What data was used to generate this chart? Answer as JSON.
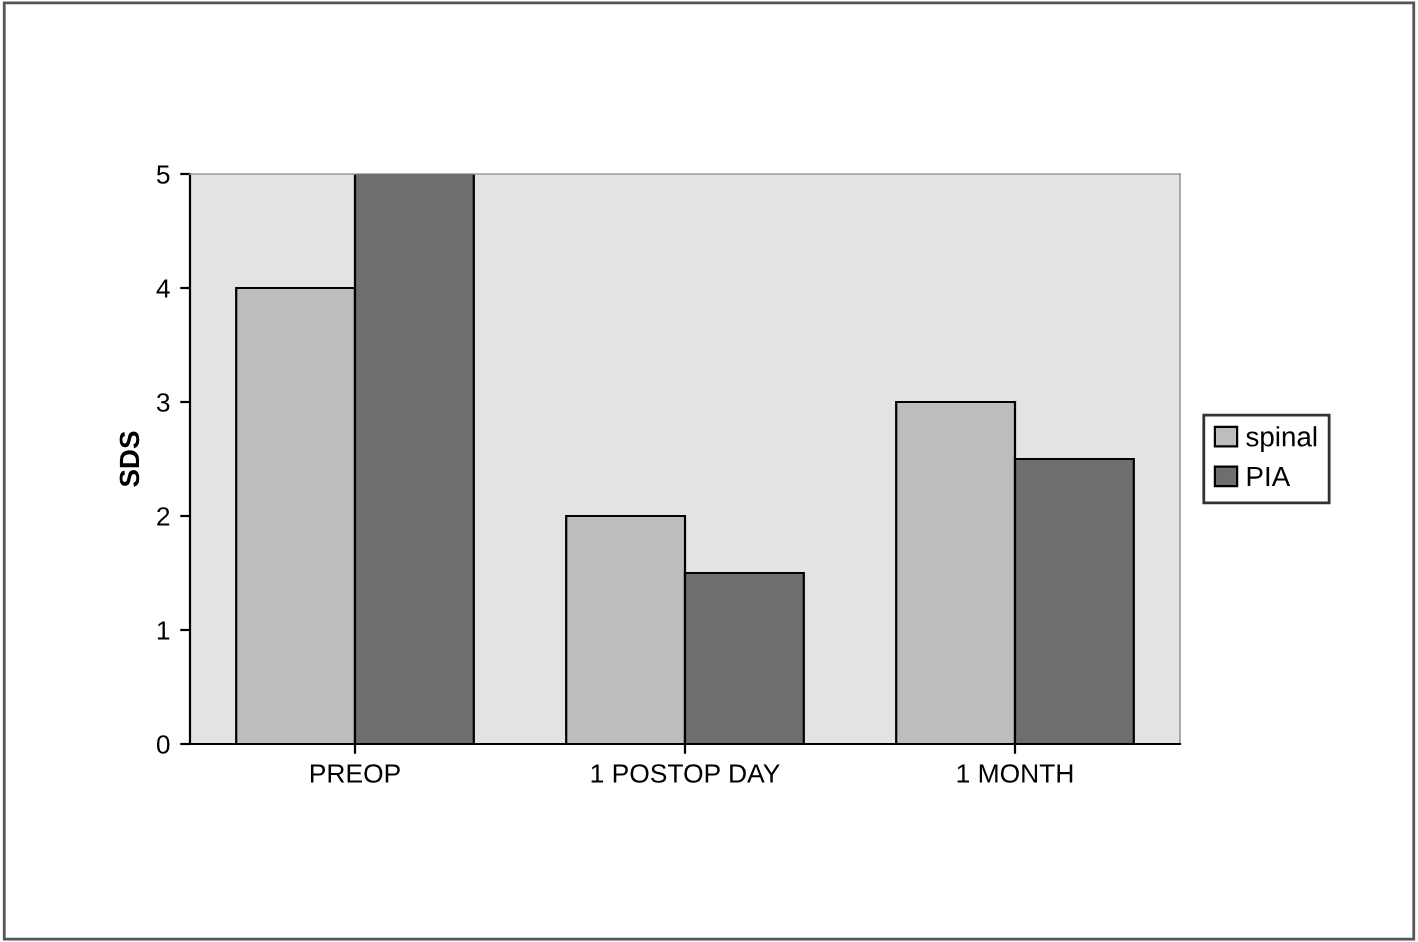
{
  "chart_data": {
    "type": "bar",
    "ylabel": "SDS",
    "categories": [
      "PREOP",
      "1 POSTOP DAY",
      "1 MONTH"
    ],
    "series": [
      {
        "name": "spinal",
        "color": "#bdbdbd",
        "values": [
          4,
          2,
          3
        ]
      },
      {
        "name": "PIA",
        "color": "#6e6e6e",
        "values": [
          5,
          1.5,
          2.5
        ]
      }
    ],
    "ylim": [
      0,
      5
    ],
    "yticks": [
      0,
      1,
      2,
      3,
      4,
      5
    ],
    "grid": false,
    "legend": "right"
  }
}
